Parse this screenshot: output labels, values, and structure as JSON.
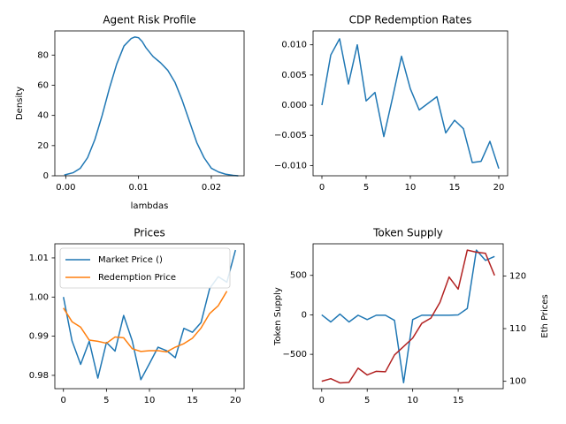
{
  "chart_data": [
    {
      "type": "line",
      "title": "Agent Risk Profile",
      "xlabel": "lambdas",
      "ylabel": "Density",
      "xlim": [
        -0.0015,
        0.0245
      ],
      "ylim": [
        0,
        96
      ],
      "xticks": [
        0.0,
        0.01,
        0.02
      ],
      "xtick_labels": [
        "0.00",
        "0.01",
        "0.02"
      ],
      "yticks": [
        0,
        20,
        40,
        60,
        80
      ],
      "ytick_labels": [
        "0",
        "20",
        "40",
        "60",
        "80"
      ],
      "grid": false,
      "series": [
        {
          "color": "#1f77b4",
          "x": [
            -0.0002,
            0.001,
            0.002,
            0.003,
            0.004,
            0.005,
            0.006,
            0.007,
            0.008,
            0.009,
            0.0095,
            0.01,
            0.0105,
            0.011,
            0.012,
            0.013,
            0.014,
            0.015,
            0.016,
            0.017,
            0.018,
            0.019,
            0.02,
            0.021,
            0.022,
            0.023,
            0.0237
          ],
          "y": [
            0.5,
            2,
            5,
            12,
            24,
            40,
            58,
            74,
            86,
            91,
            92,
            91.5,
            89,
            85,
            79,
            75,
            70,
            62,
            50,
            36,
            22,
            12,
            5,
            2.5,
            1,
            0.3,
            0
          ]
        }
      ]
    },
    {
      "type": "line",
      "title": "CDP Redemption Rates",
      "xlim": [
        -1,
        21
      ],
      "ylim": [
        -0.0117,
        0.0123
      ],
      "xticks": [
        0,
        5,
        10,
        15,
        20
      ],
      "xtick_labels": [
        "0",
        "5",
        "10",
        "15",
        "20"
      ],
      "yticks": [
        -0.01,
        -0.005,
        0.0,
        0.005,
        0.01
      ],
      "ytick_labels": [
        "−0.010",
        "−0.005",
        "0.000",
        "0.005",
        "0.010"
      ],
      "grid": false,
      "series": [
        {
          "color": "#1f77b4",
          "x": [
            0,
            1,
            2,
            3,
            4,
            5,
            6,
            7,
            8,
            9,
            10,
            11,
            12,
            13,
            14,
            15,
            16,
            17,
            18,
            19,
            20
          ],
          "y": [
            0.0,
            0.0083,
            0.011,
            0.0035,
            0.01,
            0.0007,
            0.0021,
            -0.0052,
            0.0013,
            0.0081,
            0.0027,
            -0.0008,
            0.0003,
            0.0014,
            -0.0046,
            -0.0025,
            -0.0039,
            -0.0095,
            -0.0093,
            -0.006,
            -0.0105
          ]
        }
      ]
    },
    {
      "type": "line",
      "title": "Prices",
      "xlim": [
        -1,
        21
      ],
      "ylim": [
        0.9766,
        1.0136
      ],
      "xticks": [
        0,
        5,
        10,
        15,
        20
      ],
      "xtick_labels": [
        "0",
        "5",
        "10",
        "15",
        "20"
      ],
      "yticks": [
        0.98,
        0.99,
        1.0,
        1.01
      ],
      "ytick_labels": [
        "0.98",
        "0.99",
        "1.00",
        "1.01"
      ],
      "grid": false,
      "legend": "top-left",
      "series": [
        {
          "name": "Market Price ()",
          "color": "#1f77b4",
          "x": [
            0,
            1,
            2,
            3,
            4,
            5,
            6,
            7,
            8,
            9,
            10,
            11,
            12,
            13,
            14,
            15,
            16,
            17,
            18,
            19,
            20
          ],
          "y": [
            1.0,
            0.9888,
            0.9828,
            0.9887,
            0.9793,
            0.9884,
            0.9862,
            0.9953,
            0.9888,
            0.9789,
            0.983,
            0.9872,
            0.9863,
            0.9845,
            0.992,
            0.991,
            0.9935,
            1.0022,
            1.0052,
            1.0038,
            1.012
          ]
        },
        {
          "name": "Redemption Price",
          "color": "#ff7f0e",
          "x": [
            0,
            1,
            2,
            3,
            4,
            5,
            6,
            7,
            8,
            9,
            10,
            11,
            12,
            13,
            14,
            15,
            16,
            17,
            18,
            19
          ],
          "y": [
            0.9972,
            0.9937,
            0.9923,
            0.989,
            0.9887,
            0.9882,
            0.9898,
            0.9896,
            0.9868,
            0.9861,
            0.9863,
            0.9863,
            0.986,
            0.9872,
            0.9881,
            0.9895,
            0.9921,
            0.9958,
            0.9978,
            1.0015
          ]
        }
      ]
    },
    {
      "type": "line",
      "title": "Token Supply",
      "ylabel": "Token Supply",
      "ylabel_right": "Eth Prices",
      "xlim": [
        -0.95,
        19.95
      ],
      "ylim": [
        -935,
        900
      ],
      "ylim_right": [
        98.6,
        126.1
      ],
      "xticks": [
        0,
        5,
        10,
        15
      ],
      "xtick_labels": [
        "0",
        "5",
        "10",
        "15"
      ],
      "yticks": [
        -500,
        0,
        500
      ],
      "ytick_labels": [
        "−500",
        "0",
        "500"
      ],
      "yticks_right": [
        100,
        110,
        120
      ],
      "ytick_labels_right": [
        "100",
        "110",
        "120"
      ],
      "grid": false,
      "series": [
        {
          "axis": "left",
          "color": "#1f77b4",
          "x": [
            0,
            1,
            2,
            3,
            4,
            5,
            6,
            7,
            8,
            9,
            10,
            11,
            12,
            13,
            14,
            15,
            16,
            17,
            18,
            19
          ],
          "y": [
            0,
            -90,
            10,
            -90,
            -5,
            -60,
            -5,
            -5,
            -70,
            -860,
            -60,
            -5,
            -5,
            -5,
            -5,
            0,
            80,
            820,
            690,
            740
          ]
        },
        {
          "axis": "right",
          "color": "#b22222",
          "x": [
            0,
            1,
            2,
            3,
            4,
            5,
            6,
            7,
            8,
            9,
            10,
            11,
            12,
            13,
            14,
            15,
            16,
            17,
            18,
            19
          ],
          "y": [
            100.0,
            100.5,
            99.7,
            99.8,
            102.5,
            101.2,
            101.9,
            101.8,
            105.0,
            106.6,
            108.2,
            111.0,
            112.0,
            115.0,
            119.8,
            117.5,
            124.9,
            124.5,
            124.3,
            120.1
          ]
        }
      ]
    }
  ]
}
